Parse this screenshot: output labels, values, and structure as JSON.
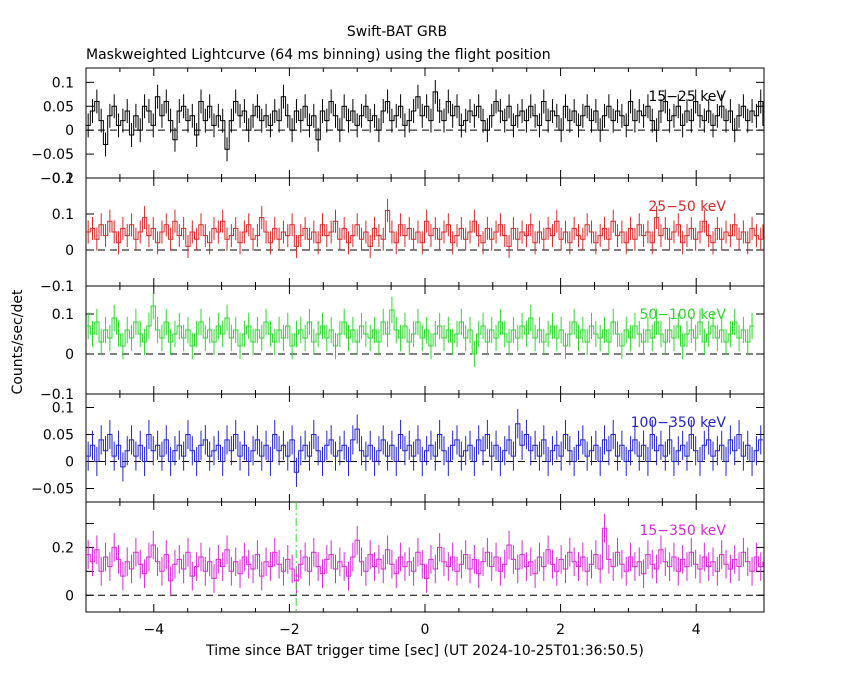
{
  "title": "Swift-BAT GRB",
  "subtitle": "Maskweighted Lightcurve (64 ms binning) using the flight position",
  "ylabel": "Counts/sec/det",
  "xlabel": "Time since BAT trigger time [sec] (UT 2024-10-25T01:36:50.5)",
  "chart_data": {
    "type": "line",
    "title": "Swift-BAT GRB",
    "subtitle": "Maskweighted Lightcurve (64 ms binning) using the flight position",
    "xlabel": "Time since BAT trigger time [sec] (UT 2024-10-25T01:36:50.5)",
    "ylabel": "Counts/sec/det",
    "xlim": [
      -5,
      5
    ],
    "x_ticks": [
      -4,
      -2,
      0,
      2,
      4
    ],
    "x_tick_labels": [
      "−4",
      "−2",
      "0",
      "2",
      "4"
    ],
    "bin_width_s": 0.064,
    "trigger_marker_x": -1.9,
    "zero_line": "dashed",
    "panels": [
      {
        "name": "15−25 keV",
        "color": "#000000",
        "ylim": [
          -0.1,
          0.13
        ],
        "yticks": [
          -0.1,
          -0.05,
          0,
          0.05,
          0.1
        ],
        "ytick_labels": [
          "−0.1",
          "−0.05",
          "0",
          "0.05",
          "0.1"
        ],
        "mean": 0.02,
        "sigma": 0.028,
        "err": 0.025,
        "values": [
          0.01,
          0.04,
          0.06,
          0.02,
          -0.03,
          0.03,
          0.05,
          0.01,
          0.02,
          0.04,
          -0.01,
          0.03,
          0.0,
          0.05,
          0.04,
          0.01,
          0.07,
          0.03,
          0.06,
          0.02,
          -0.02,
          0.04,
          0.05,
          0.02,
          0.03,
          -0.01,
          0.06,
          0.02,
          0.05,
          0.01,
          0.03,
          0.02,
          -0.04,
          0.02,
          0.06,
          0.03,
          0.04,
          0.0,
          0.03,
          0.05,
          0.02,
          0.03,
          0.01,
          0.04,
          0.02,
          0.07,
          0.03,
          0.0,
          0.04,
          0.02,
          0.05,
          0.01,
          0.03,
          -0.02,
          0.04,
          0.02,
          0.06,
          0.03,
          0.0,
          0.05,
          0.02,
          0.04,
          0.01,
          0.03,
          0.05,
          0.02,
          0.03,
          0.0,
          0.04,
          0.06,
          0.02,
          0.03,
          0.05,
          0.01,
          0.02,
          0.04,
          0.07,
          0.03,
          0.05,
          0.02,
          0.08,
          0.04,
          0.02,
          0.06,
          0.03,
          0.05,
          0.01,
          0.02,
          0.04,
          0.03,
          0.05,
          0.02,
          0.0,
          0.03,
          0.06,
          0.04,
          0.02,
          0.05,
          0.01,
          0.03,
          0.04,
          0.02,
          0.05,
          0.03,
          0.01,
          0.06,
          0.02,
          0.04,
          0.03,
          0.0,
          0.05,
          0.02,
          0.04,
          0.01,
          0.03,
          0.05,
          0.02,
          0.04,
          0.0,
          0.03,
          0.05,
          0.02,
          0.04,
          0.03,
          0.01,
          0.06,
          0.02,
          0.04,
          0.03,
          0.05,
          0.02,
          0.0,
          0.04,
          0.06,
          0.02,
          0.03,
          0.05,
          0.01,
          0.04,
          0.02,
          0.06,
          0.03,
          0.02,
          0.04,
          0.01,
          0.03,
          0.05,
          0.02,
          0.04,
          0.0,
          0.03,
          0.05,
          0.02,
          0.04,
          0.03,
          0.06,
          0.01,
          0.03,
          0.05,
          0.02
        ]
      },
      {
        "name": "25−50 keV",
        "color": "#d42a2a",
        "ylim": [
          -0.1,
          0.2
        ],
        "yticks": [
          -0.1,
          0,
          0.1,
          0.2
        ],
        "ytick_labels": [
          "−0.1",
          "0",
          "0.1",
          "0.2"
        ],
        "mean": 0.04,
        "sigma": 0.03,
        "err": 0.032,
        "values": [
          0.05,
          0.06,
          0.03,
          0.07,
          0.04,
          0.08,
          0.05,
          0.02,
          0.06,
          0.04,
          0.07,
          0.03,
          0.05,
          0.09,
          0.04,
          0.06,
          0.02,
          0.05,
          0.07,
          0.03,
          0.08,
          0.04,
          0.06,
          0.01,
          0.05,
          0.03,
          0.07,
          0.04,
          0.02,
          0.06,
          0.05,
          0.08,
          0.03,
          0.04,
          0.06,
          0.02,
          0.05,
          0.07,
          0.03,
          0.04,
          0.09,
          0.05,
          0.02,
          0.06,
          0.03,
          0.05,
          0.04,
          0.07,
          0.01,
          0.04,
          0.06,
          0.03,
          0.05,
          0.02,
          0.07,
          0.04,
          0.05,
          0.08,
          0.03,
          0.06,
          0.02,
          0.04,
          0.07,
          0.03,
          0.05,
          0.01,
          0.06,
          0.04,
          0.03,
          0.11,
          0.05,
          0.02,
          0.07,
          0.04,
          0.06,
          0.03,
          0.05,
          0.02,
          0.08,
          0.04,
          0.06,
          0.03,
          0.05,
          0.07,
          0.02,
          0.04,
          0.06,
          0.03,
          0.05,
          0.08,
          0.04,
          0.02,
          0.06,
          0.03,
          0.05,
          0.07,
          0.04,
          0.01,
          0.06,
          0.03,
          0.05,
          0.04,
          0.07,
          0.02,
          0.05,
          0.03,
          0.06,
          0.04,
          0.08,
          0.03,
          0.05,
          0.02,
          0.06,
          0.04,
          0.03,
          0.07,
          0.05,
          0.02,
          0.04,
          0.06,
          0.03,
          0.08,
          0.04,
          0.05,
          0.02,
          0.06,
          0.03,
          0.07,
          0.04,
          0.05,
          0.02,
          0.09,
          0.04,
          0.06,
          0.03,
          0.05,
          0.07,
          0.02,
          0.04,
          0.06,
          0.03,
          0.05,
          0.08,
          0.04,
          0.02,
          0.06,
          0.03,
          0.05,
          0.04,
          0.07,
          0.03,
          0.05,
          0.02,
          0.06,
          0.04,
          0.03,
          0.07,
          0.05
        ]
      },
      {
        "name": "50−100 keV",
        "color": "#2fd62f",
        "ylim": [
          -0.1,
          0.17
        ],
        "yticks": [
          -0.1,
          0,
          0.1
        ],
        "ytick_labels": [
          "−0.1",
          "0",
          "0.1"
        ],
        "mean": 0.05,
        "sigma": 0.028,
        "err": 0.033,
        "values": [
          0.07,
          0.05,
          0.08,
          0.03,
          0.06,
          0.04,
          0.09,
          0.05,
          0.02,
          0.06,
          0.04,
          0.08,
          0.05,
          0.03,
          0.07,
          0.12,
          0.06,
          0.04,
          0.08,
          0.03,
          0.05,
          0.07,
          0.04,
          0.06,
          0.02,
          0.05,
          0.08,
          0.04,
          0.06,
          0.03,
          0.07,
          0.05,
          0.09,
          0.04,
          0.06,
          0.02,
          0.05,
          0.07,
          0.03,
          0.06,
          0.04,
          0.08,
          0.05,
          0.03,
          0.06,
          0.04,
          0.07,
          0.02,
          0.05,
          0.06,
          0.04,
          0.08,
          0.03,
          0.05,
          0.07,
          0.04,
          0.06,
          0.02,
          0.05,
          0.08,
          0.04,
          0.06,
          0.03,
          0.07,
          0.05,
          0.04,
          0.06,
          0.03,
          0.08,
          0.05,
          0.11,
          0.06,
          0.04,
          0.07,
          0.03,
          0.05,
          0.08,
          0.04,
          0.06,
          0.02,
          0.05,
          0.07,
          0.04,
          0.06,
          0.03,
          0.05,
          0.08,
          0.04,
          0.06,
          0.0,
          0.05,
          0.07,
          0.03,
          0.06,
          0.04,
          0.08,
          0.05,
          0.03,
          0.06,
          0.04,
          0.07,
          0.05,
          0.09,
          0.04,
          0.06,
          0.03,
          0.05,
          0.07,
          0.04,
          0.06,
          0.02,
          0.05,
          0.08,
          0.04,
          0.06,
          0.03,
          0.07,
          0.05,
          0.04,
          0.06,
          0.03,
          0.08,
          0.05,
          0.02,
          0.06,
          0.04,
          0.07,
          0.05,
          0.03,
          0.06,
          0.04,
          0.08,
          0.05,
          0.03,
          0.06,
          0.04,
          0.07,
          0.02,
          0.05,
          0.06,
          0.04,
          0.08,
          0.03,
          0.05,
          0.07,
          0.04,
          0.06,
          0.03,
          0.05,
          0.08,
          0.04,
          0.06,
          0.03,
          0.07
        ]
      },
      {
        "name": "100−350 keV",
        "color": "#2323c8",
        "ylim": [
          -0.075,
          0.125
        ],
        "yticks": [
          -0.05,
          0,
          0.05,
          0.1
        ],
        "ytick_labels": [
          "−0.05",
          "0",
          "0.05",
          "0.1"
        ],
        "mean": 0.02,
        "sigma": 0.024,
        "err": 0.027,
        "values": [
          0.01,
          0.03,
          0.0,
          0.04,
          0.02,
          0.05,
          0.01,
          0.03,
          -0.01,
          0.02,
          0.04,
          0.01,
          0.03,
          0.0,
          0.05,
          0.02,
          0.03,
          0.01,
          0.04,
          0.0,
          0.02,
          0.03,
          0.01,
          0.05,
          0.02,
          0.0,
          0.03,
          0.04,
          0.01,
          0.02,
          0.03,
          0.0,
          0.04,
          0.02,
          0.05,
          0.01,
          0.03,
          0.0,
          0.02,
          0.04,
          0.01,
          0.03,
          0.0,
          0.05,
          0.02,
          0.03,
          0.01,
          0.04,
          -0.02,
          0.02,
          0.03,
          0.01,
          0.05,
          0.02,
          0.0,
          0.03,
          0.04,
          0.01,
          0.02,
          0.03,
          0.0,
          0.04,
          0.06,
          0.02,
          0.01,
          0.03,
          0.0,
          0.02,
          0.04,
          0.01,
          0.03,
          0.0,
          0.05,
          0.02,
          0.03,
          0.01,
          0.04,
          0.0,
          0.02,
          0.03,
          0.01,
          0.05,
          0.02,
          0.0,
          0.03,
          0.04,
          0.01,
          0.02,
          0.03,
          0.0,
          0.04,
          0.02,
          0.05,
          0.01,
          0.03,
          0.0,
          0.02,
          0.04,
          0.01,
          0.07,
          0.03,
          0.05,
          0.02,
          0.03,
          0.01,
          0.04,
          0.0,
          0.02,
          0.03,
          0.01,
          0.05,
          0.02,
          0.0,
          0.03,
          0.04,
          0.01,
          0.02,
          0.03,
          0.0,
          0.04,
          0.02,
          0.05,
          0.01,
          0.03,
          0.0,
          0.02,
          0.04,
          0.01,
          0.03,
          0.0,
          0.05,
          0.02,
          0.03,
          0.01,
          0.04,
          0.0,
          0.02,
          0.03,
          0.01,
          0.05,
          0.02,
          0.0,
          0.03,
          0.04,
          0.01,
          0.02,
          0.03,
          0.0,
          0.04,
          0.02,
          0.05,
          0.01,
          0.03,
          0.0,
          0.02,
          0.04
        ]
      },
      {
        "name": "15−350 keV",
        "color": "#d42ad4",
        "ylim": [
          -0.07,
          0.39
        ],
        "yticks": [
          0,
          0.1,
          0.2,
          0.3
        ],
        "ytick_labels": [
          "0",
          "",
          "0.2",
          ""
        ],
        "mean": 0.14,
        "sigma": 0.05,
        "err": 0.06,
        "values": [
          0.17,
          0.14,
          0.19,
          0.1,
          0.16,
          0.12,
          0.2,
          0.15,
          0.08,
          0.14,
          0.11,
          0.18,
          0.13,
          0.09,
          0.16,
          0.21,
          0.14,
          0.1,
          0.17,
          0.06,
          0.13,
          0.15,
          0.11,
          0.18,
          0.08,
          0.12,
          0.16,
          0.1,
          0.14,
          0.07,
          0.15,
          0.12,
          0.19,
          0.1,
          0.14,
          0.09,
          0.16,
          0.13,
          0.11,
          0.17,
          0.08,
          0.14,
          0.12,
          0.18,
          0.13,
          0.1,
          0.15,
          0.11,
          0.06,
          0.13,
          0.16,
          0.1,
          0.18,
          0.12,
          0.09,
          0.15,
          0.17,
          0.11,
          0.14,
          0.12,
          0.08,
          0.16,
          0.23,
          0.14,
          0.1,
          0.17,
          0.12,
          0.15,
          0.11,
          0.19,
          0.13,
          0.09,
          0.16,
          0.12,
          0.14,
          0.1,
          0.18,
          0.13,
          0.07,
          0.15,
          0.11,
          0.2,
          0.14,
          0.12,
          0.16,
          0.1,
          0.13,
          0.17,
          0.11,
          0.15,
          0.09,
          0.14,
          0.18,
          0.12,
          0.16,
          0.1,
          0.13,
          0.21,
          0.15,
          0.11,
          0.17,
          0.12,
          0.14,
          0.09,
          0.16,
          0.12,
          0.19,
          0.13,
          0.1,
          0.15,
          0.11,
          0.18,
          0.14,
          0.12,
          0.16,
          0.1,
          0.13,
          0.17,
          0.11,
          0.28,
          0.15,
          0.12,
          0.18,
          0.13,
          0.1,
          0.16,
          0.12,
          0.14,
          0.09,
          0.17,
          0.13,
          0.11,
          0.19,
          0.14,
          0.12,
          0.16,
          0.1,
          0.15,
          0.12,
          0.18,
          0.13,
          0.11,
          0.16,
          0.12,
          0.14,
          0.1,
          0.17,
          0.13,
          0.11,
          0.15,
          0.12,
          0.18,
          0.14,
          0.1,
          0.16,
          0.12,
          0.14,
          0.11,
          0.19
        ]
      }
    ]
  }
}
